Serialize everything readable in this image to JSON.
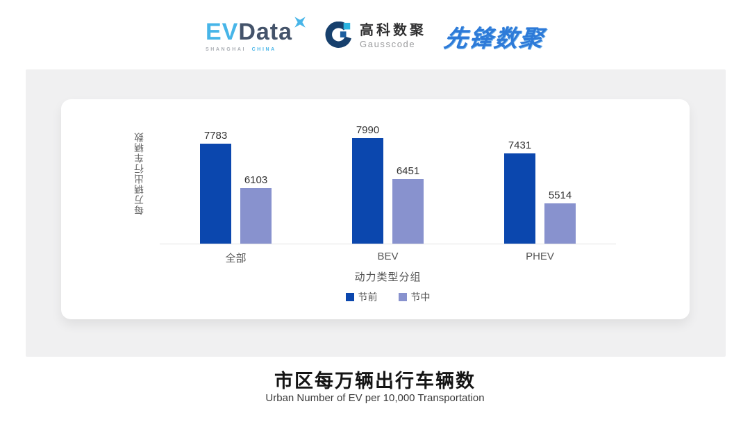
{
  "header": {
    "evdata": {
      "ev": "EV",
      "data": "Data",
      "sub_left": "SHANGHAI",
      "sub_right": "CHINA"
    },
    "gausscode": {
      "cn": "高科数聚",
      "en": "Gausscode"
    },
    "xianfeng": "先锋数聚"
  },
  "chart_data": {
    "type": "bar",
    "categories": [
      "全部",
      "BEV",
      "PHEV"
    ],
    "series": [
      {
        "name": "节前",
        "color": "#0b47ae",
        "values": [
          7783,
          7990,
          7431
        ]
      },
      {
        "name": "节中",
        "color": "#8892ce",
        "values": [
          6103,
          6451,
          5514
        ]
      }
    ],
    "xlabel": "动力类型分组",
    "ylabel": "每万辆出行车辆数",
    "ylim": [
      4000,
      9000
    ],
    "grid": false,
    "legend_position": "bottom",
    "value_labels": true
  },
  "footer": {
    "title": "市区每万辆出行车辆数",
    "subtitle": "Urban Number of EV per 10,000 Transportation"
  },
  "colors": {
    "panel_bg": "#f0f0f1",
    "card_bg": "#ffffff",
    "axis_line": "#e2e2e3",
    "brand_blue": "#2d7ad8",
    "evdata_blue": "#47b5e8",
    "evdata_slate": "#44536a",
    "gauss_navy": "#17406d",
    "gauss_cyan": "#2bb3e0"
  }
}
